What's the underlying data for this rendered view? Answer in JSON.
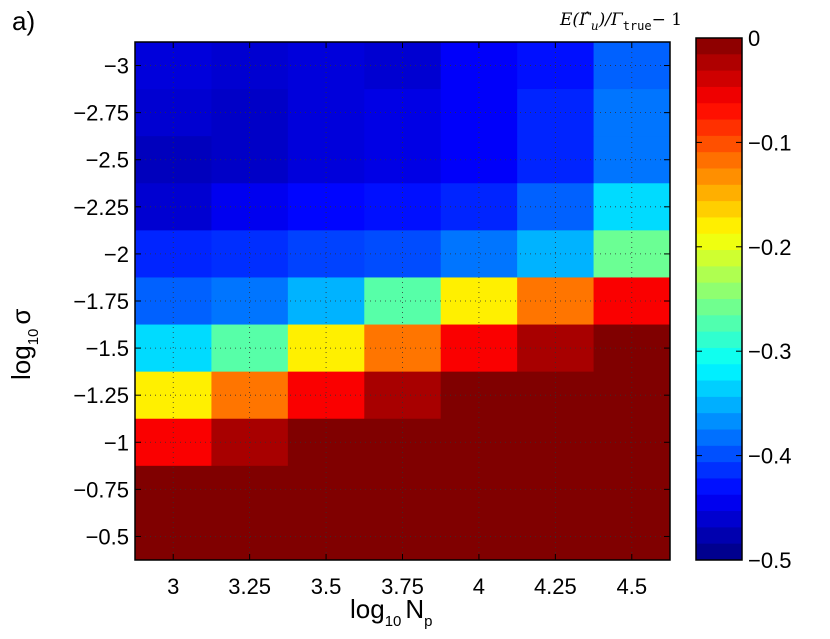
{
  "chart_data": {
    "type": "heatmap",
    "panel_label": "a)",
    "x": {
      "label_main": "log",
      "label_sub": "10",
      "label_var": "N",
      "label_var_sub": "p",
      "ticks": [
        "3",
        "3.25",
        "3.5",
        "3.75",
        "4",
        "4.25",
        "4.5"
      ],
      "values": [
        3,
        3.25,
        3.5,
        3.75,
        4,
        4.25,
        4.5
      ]
    },
    "y": {
      "label_main": "log",
      "label_sub": "10",
      "label_var": "σ",
      "ticks": [
        "-3",
        "-2.75",
        "-2.5",
        "-2.25",
        "-2",
        "-1.75",
        "-1.5",
        "-1.25",
        "-1",
        "-0.75",
        "-0.5"
      ],
      "values": [
        -3,
        -2.75,
        -2.5,
        -2.25,
        -2,
        -1.75,
        -1.5,
        -1.25,
        -1,
        -0.75,
        -0.5
      ]
    },
    "colorbar": {
      "title_lhs": "E(Γ̂",
      "title_lhs_sub": "u",
      "title_mid": ")/Γ",
      "title_mid_sub": "true",
      "title_rhs": "− 1",
      "range": [
        -0.5,
        0
      ],
      "ticks": [
        "0",
        "-0.1",
        "-0.2",
        "-0.3",
        "-0.4",
        "-0.5"
      ],
      "tick_values": [
        0,
        -0.1,
        -0.2,
        -0.3,
        -0.4,
        -0.5
      ],
      "colormap": "jet"
    },
    "grid": "dotted",
    "z": [
      [
        -0.455,
        -0.46,
        -0.455,
        -0.46,
        -0.44,
        -0.43,
        -0.39
      ],
      [
        -0.46,
        -0.465,
        -0.455,
        -0.45,
        -0.44,
        -0.42,
        -0.38
      ],
      [
        -0.47,
        -0.465,
        -0.455,
        -0.45,
        -0.44,
        -0.42,
        -0.38
      ],
      [
        -0.46,
        -0.445,
        -0.435,
        -0.43,
        -0.42,
        -0.39,
        -0.33
      ],
      [
        -0.42,
        -0.415,
        -0.405,
        -0.4,
        -0.38,
        -0.35,
        -0.26
      ],
      [
        -0.39,
        -0.38,
        -0.35,
        -0.27,
        -0.18,
        -0.12,
        -0.06
      ],
      [
        -0.33,
        -0.27,
        -0.18,
        -0.12,
        -0.06,
        -0.02,
        0.0
      ],
      [
        -0.18,
        -0.12,
        -0.06,
        -0.02,
        0.0,
        0.0,
        0.0
      ],
      [
        -0.06,
        -0.02,
        0.0,
        0.0,
        0.0,
        0.0,
        0.0
      ],
      [
        0.0,
        0.0,
        0.0,
        0.0,
        0.0,
        0.0,
        0.0
      ],
      [
        0.0,
        0.0,
        0.0,
        0.0,
        0.0,
        0.0,
        0.0
      ]
    ]
  },
  "colors": {
    "axis": "#000000",
    "background": "#ffffff"
  }
}
